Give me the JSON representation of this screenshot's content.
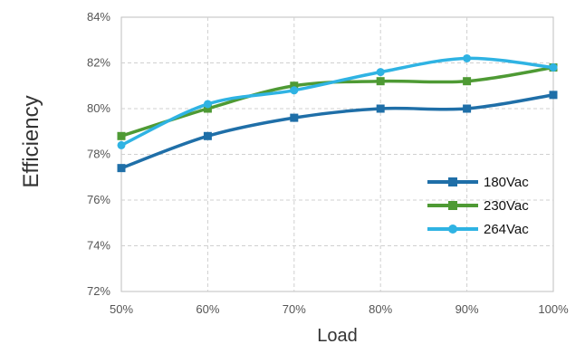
{
  "chart_data": {
    "type": "line",
    "xlabel": "Load",
    "ylabel": "Efficiency",
    "categories": [
      "50%",
      "60%",
      "70%",
      "80%",
      "90%",
      "100%"
    ],
    "y_ticks": [
      "72%",
      "74%",
      "76%",
      "78%",
      "80%",
      "82%",
      "84%"
    ],
    "ylim": [
      72,
      84
    ],
    "grid": true,
    "smooth": true,
    "legend_position": "lower-right",
    "series": [
      {
        "name": "180Vac",
        "color": "#1f6fa8",
        "marker": "square",
        "values": [
          77.4,
          78.8,
          79.6,
          80.0,
          80.0,
          80.6
        ]
      },
      {
        "name": "230Vac",
        "color": "#4e9a34",
        "marker": "square",
        "values": [
          78.8,
          80.0,
          81.0,
          81.2,
          81.2,
          81.8
        ]
      },
      {
        "name": "264Vac",
        "color": "#2fb3e3",
        "marker": "circle",
        "values": [
          78.4,
          80.2,
          80.8,
          81.6,
          82.2,
          81.8
        ]
      }
    ]
  }
}
